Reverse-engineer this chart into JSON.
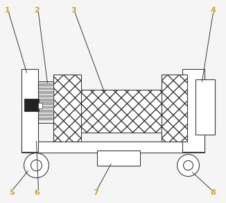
{
  "bg_color": "#f5f5f5",
  "line_color": "#3a3a3a",
  "label_color": "#d4a020",
  "figsize": [
    3.26,
    2.94
  ],
  "dpi": 100,
  "lw": 0.8
}
